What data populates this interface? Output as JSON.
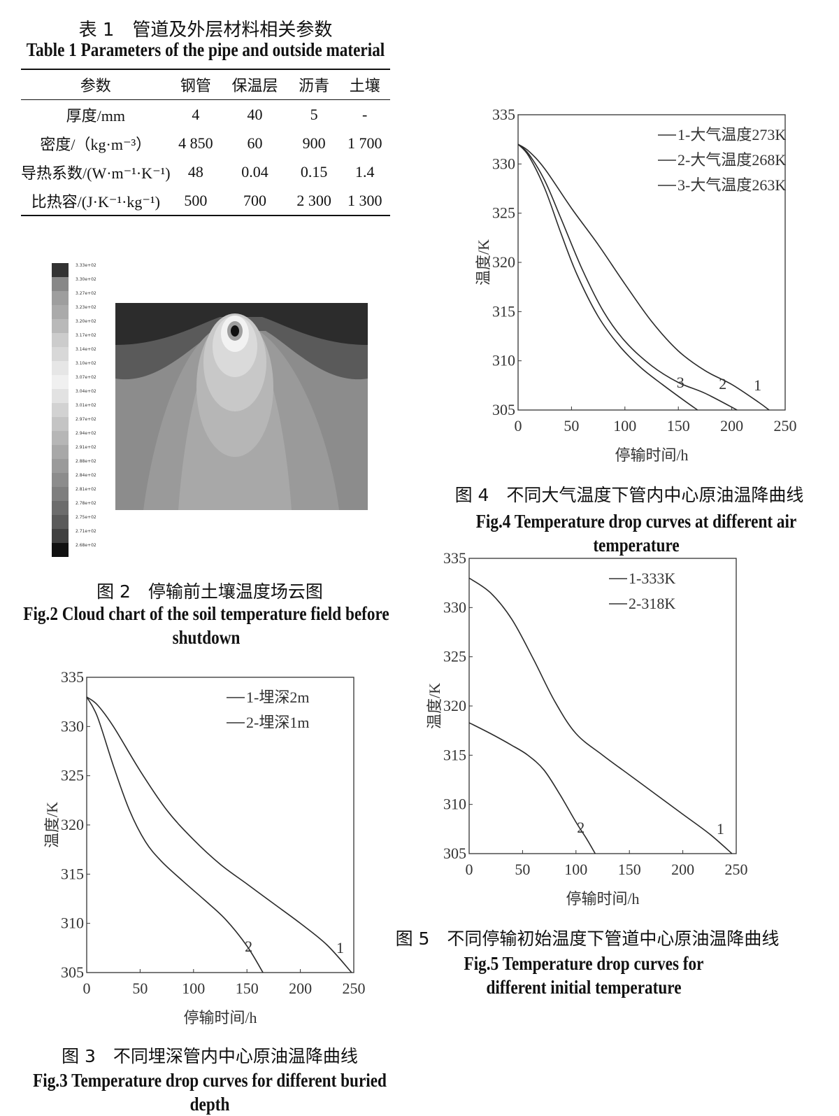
{
  "table1": {
    "title_cn": "表 1　管道及外层材料相关参数",
    "title_en": "Table 1 Parameters of the pipe and outside material",
    "headers": [
      "参数",
      "钢管",
      "保温层",
      "沥青",
      "土壤"
    ],
    "rows": [
      {
        "label": "厚度/mm",
        "values": [
          "4",
          "40",
          "5",
          "-"
        ]
      },
      {
        "label": "密度/（kg·m⁻³）",
        "values": [
          "4 850",
          "60",
          "900",
          "1 700"
        ]
      },
      {
        "label": "导热系数/(W·m⁻¹·K⁻¹)",
        "values": [
          "48",
          "0.04",
          "0.15",
          "1.4"
        ]
      },
      {
        "label": "比热容/(J·K⁻¹·kg⁻¹)",
        "values": [
          "500",
          "700",
          "2 300",
          "1 300"
        ]
      }
    ]
  },
  "fig2": {
    "caption_cn": "图 2　停输前土壤温度场云图",
    "caption_en": "Fig.2 Cloud chart of the soil temperature field before shutdown",
    "legend_labels": [
      "3.33e+02",
      "3.30e+02",
      "3.27e+02",
      "3.23e+02",
      "3.20e+02",
      "3.17e+02",
      "3.14e+02",
      "3.10e+02",
      "3.07e+02",
      "3.04e+02",
      "3.01e+02",
      "2.97e+02",
      "2.94e+02",
      "2.91e+02",
      "2.88e+02",
      "2.84e+02",
      "2.81e+02",
      "2.78e+02",
      "2.75e+02",
      "2.71e+02",
      "2.68e+02"
    ],
    "legend_colors": [
      "#333333",
      "#888888",
      "#9e9e9e",
      "#aaaaaa",
      "#b9b9b9",
      "#cccccc",
      "#d8d8d8",
      "#e6e6e6",
      "#f0f0f0",
      "#e2e2e2",
      "#d2d2d2",
      "#c4c4c4",
      "#b6b6b6",
      "#a8a8a8",
      "#9a9a9a",
      "#8c8c8c",
      "#7e7e7e",
      "#6c6c6c",
      "#5a5a5a",
      "#404040",
      "#111111"
    ]
  },
  "fig3": {
    "caption_cn": "图 3　不同埋深管内中心原油温降曲线",
    "caption_en": "Fig.3 Temperature drop curves for different buried depth",
    "chart_data": {
      "type": "line",
      "xlabel": "停输时间/h",
      "ylabel": "温度/K",
      "xlim": [
        0,
        250
      ],
      "ylim": [
        305,
        335
      ],
      "xticks": [
        0,
        50,
        100,
        150,
        200,
        250
      ],
      "yticks": [
        305,
        310,
        315,
        320,
        325,
        330,
        335
      ],
      "legend": "top-right",
      "series": [
        {
          "name": "1-埋深2m",
          "label": "1",
          "x": [
            0,
            10,
            25,
            50,
            75,
            100,
            125,
            150,
            175,
            200,
            225,
            248
          ],
          "y": [
            333,
            332.2,
            330,
            325.5,
            321.5,
            318.5,
            316,
            314,
            312,
            310,
            307.8,
            305
          ]
        },
        {
          "name": "2-埋深1m",
          "label": "2",
          "x": [
            0,
            10,
            25,
            40,
            55,
            70,
            90,
            110,
            130,
            150,
            165
          ],
          "y": [
            333,
            331,
            326,
            321.5,
            318.3,
            316.3,
            314.3,
            312.4,
            310.4,
            307.7,
            305
          ]
        }
      ]
    }
  },
  "fig4": {
    "caption_cn": "图 4　不同大气温度下管内中心原油温降曲线",
    "caption_en": "Fig.4 Temperature drop curves at different air temperature",
    "chart_data": {
      "type": "line",
      "xlabel": "停输时间/h",
      "ylabel": "温度/K",
      "xlim": [
        0,
        250
      ],
      "ylim": [
        305,
        335
      ],
      "xticks": [
        0,
        50,
        100,
        150,
        200,
        250
      ],
      "yticks": [
        305,
        310,
        315,
        320,
        325,
        330,
        335
      ],
      "legend": "top-right",
      "series": [
        {
          "name": "1-大气温度273K",
          "label": "1",
          "x": [
            0,
            10,
            25,
            50,
            75,
            100,
            125,
            150,
            175,
            200,
            225,
            235
          ],
          "y": [
            332,
            331.3,
            329.5,
            325.5,
            321.8,
            317.8,
            314,
            311,
            309,
            307.6,
            305.8,
            305
          ]
        },
        {
          "name": "2-大气温度268K",
          "label": "2",
          "x": [
            0,
            10,
            25,
            40,
            60,
            80,
            100,
            125,
            150,
            175,
            205
          ],
          "y": [
            332,
            331,
            328.3,
            324.5,
            319.3,
            315,
            312,
            309.5,
            307.8,
            306.7,
            305
          ]
        },
        {
          "name": "3-大气温度263K",
          "label": "3",
          "x": [
            0,
            10,
            25,
            40,
            55,
            75,
            95,
            115,
            135,
            155,
            168
          ],
          "y": [
            332,
            330.8,
            327.5,
            323,
            318.8,
            314.5,
            311.5,
            309.3,
            307.6,
            306,
            305
          ]
        }
      ]
    }
  },
  "fig5": {
    "caption_cn": "图 5　不同停输初始温度下管道中心原油温降曲线",
    "caption_en": "Fig.5 Temperature drop curves for different initial temperature",
    "chart_data": {
      "type": "line",
      "xlabel": "停输时间/h",
      "ylabel": "温度/K",
      "xlim": [
        0,
        250
      ],
      "ylim": [
        305,
        335
      ],
      "xticks": [
        0,
        50,
        100,
        150,
        200,
        250
      ],
      "yticks": [
        305,
        310,
        315,
        320,
        325,
        330,
        335
      ],
      "legend": "top-right",
      "series": [
        {
          "name": "1-333K",
          "label": "1",
          "x": [
            0,
            20,
            40,
            60,
            80,
            100,
            125,
            150,
            175,
            200,
            225,
            246
          ],
          "y": [
            333,
            331.5,
            328.8,
            324.8,
            320.5,
            317.2,
            315,
            313,
            311,
            309,
            307,
            305
          ]
        },
        {
          "name": "2-318K",
          "label": "2",
          "x": [
            0,
            20,
            40,
            55,
            70,
            85,
            100,
            110,
            118
          ],
          "y": [
            318.3,
            317.2,
            316,
            315,
            313.5,
            311,
            308.2,
            306.5,
            305
          ]
        }
      ]
    }
  }
}
